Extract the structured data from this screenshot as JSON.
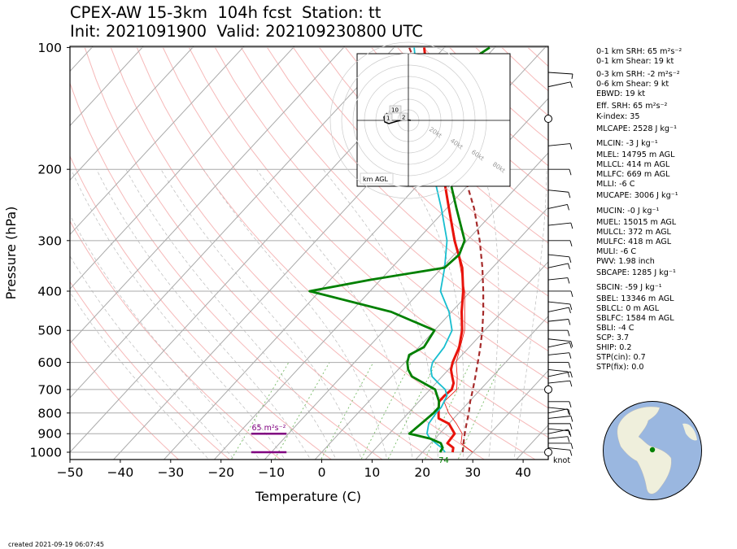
{
  "title": {
    "line1": "CPEX-AW 15-3km  104h fcst  Station: tt",
    "line2": "Init: 2021091900  Valid: 202109230800 UTC"
  },
  "created": "created 2021-09-19 06:07:45",
  "chart_data": {
    "type": "line",
    "subtype": "skew-T log-P",
    "xlabel": "Temperature (C)",
    "ylabel": "Pressure (hPa)",
    "xlim": [
      -50,
      45
    ],
    "ylim": [
      1050,
      100
    ],
    "y_scale": "log",
    "x_ticks": [
      -50,
      -40,
      -30,
      -20,
      -10,
      0,
      10,
      20,
      30,
      40
    ],
    "y_ticks": [
      100,
      200,
      300,
      400,
      500,
      600,
      700,
      800,
      900,
      1000
    ],
    "series": [
      {
        "key": "temperature",
        "color": "#e8130b",
        "points": [
          [
            1000,
            26
          ],
          [
            975,
            25.3
          ],
          [
            950,
            23.3
          ],
          [
            900,
            23
          ],
          [
            850,
            20
          ],
          [
            825,
            17
          ],
          [
            800,
            16
          ],
          [
            775,
            15
          ],
          [
            750,
            14
          ],
          [
            725,
            14
          ],
          [
            700,
            14.3
          ],
          [
            675,
            13.5
          ],
          [
            650,
            12
          ],
          [
            625,
            10.5
          ],
          [
            600,
            9.5
          ],
          [
            550,
            8
          ],
          [
            500,
            5.5
          ],
          [
            450,
            2
          ],
          [
            400,
            -1.5
          ],
          [
            350,
            -6
          ],
          [
            300,
            -12.5
          ],
          [
            250,
            -19.5
          ],
          [
            200,
            -28
          ],
          [
            175,
            -33.5
          ],
          [
            150,
            -39
          ],
          [
            125,
            -46
          ],
          [
            100,
            -54
          ]
        ]
      },
      {
        "key": "virtual_temperature",
        "color": "#e8130b",
        "points": [
          [
            1000,
            30
          ],
          [
            975,
            28
          ],
          [
            950,
            26
          ],
          [
            900,
            24.5
          ],
          [
            850,
            21.5
          ],
          [
            800,
            18
          ],
          [
            750,
            15
          ],
          [
            700,
            15.3
          ],
          [
            650,
            13
          ],
          [
            600,
            10.2
          ],
          [
            500,
            6
          ],
          [
            400,
            -1.2
          ],
          [
            300,
            -12.3
          ],
          [
            200,
            -28
          ],
          [
            100,
            -54
          ]
        ]
      },
      {
        "key": "parcel_temperature",
        "color": "#a52a2a",
        "points": [
          [
            1000,
            28
          ],
          [
            950,
            26.5
          ],
          [
            900,
            25
          ],
          [
            850,
            23.5
          ],
          [
            800,
            22
          ],
          [
            750,
            20.2
          ],
          [
            700,
            18.5
          ],
          [
            650,
            16.6
          ],
          [
            600,
            14.5
          ],
          [
            550,
            12.2
          ],
          [
            500,
            9.5
          ],
          [
            450,
            6.3
          ],
          [
            400,
            2.5
          ],
          [
            350,
            -2
          ],
          [
            300,
            -7.5
          ],
          [
            250,
            -14.5
          ],
          [
            200,
            -24
          ],
          [
            175,
            -30
          ],
          [
            150,
            -37.5
          ],
          [
            125,
            -46.5
          ],
          [
            100,
            -57
          ]
        ]
      },
      {
        "key": "wetbulb",
        "color": "#17becf",
        "points": [
          [
            1000,
            24.5
          ],
          [
            975,
            23
          ],
          [
            950,
            21
          ],
          [
            925,
            19
          ],
          [
            900,
            17.5
          ],
          [
            850,
            16
          ],
          [
            800,
            15.5
          ],
          [
            775,
            15.5
          ],
          [
            750,
            15
          ],
          [
            725,
            14.5
          ],
          [
            700,
            13
          ],
          [
            675,
            10.5
          ],
          [
            650,
            8
          ],
          [
            625,
            6.5
          ],
          [
            600,
            5.5
          ],
          [
            550,
            5
          ],
          [
            500,
            3.5
          ],
          [
            450,
            -0.5
          ],
          [
            400,
            -6
          ],
          [
            350,
            -9.5
          ],
          [
            300,
            -14
          ],
          [
            250,
            -21
          ],
          [
            200,
            -30
          ],
          [
            175,
            -35.5
          ],
          [
            150,
            -41
          ],
          [
            125,
            -48
          ],
          [
            100,
            -56
          ]
        ]
      },
      {
        "key": "dewpoint",
        "color": "#008000",
        "points": [
          [
            1000,
            23.5
          ],
          [
            975,
            23.2
          ],
          [
            950,
            22
          ],
          [
            925,
            19
          ],
          [
            900,
            14
          ],
          [
            850,
            14.5
          ],
          [
            800,
            15
          ],
          [
            775,
            15
          ],
          [
            750,
            14
          ],
          [
            700,
            11
          ],
          [
            650,
            4
          ],
          [
            625,
            2
          ],
          [
            600,
            0.5
          ],
          [
            575,
            -0.5
          ],
          [
            550,
            1
          ],
          [
            500,
            0
          ],
          [
            450,
            -12
          ],
          [
            400,
            -32
          ],
          [
            375,
            -22
          ],
          [
            350,
            -9.5
          ],
          [
            325,
            -9
          ],
          [
            300,
            -10.5
          ],
          [
            250,
            -18
          ],
          [
            200,
            -27
          ],
          [
            175,
            -34
          ],
          [
            150,
            -39
          ],
          [
            125,
            -43
          ],
          [
            110,
            -43
          ],
          [
            100,
            -41
          ]
        ]
      }
    ],
    "srh_bars": [
      {
        "pressure_levels": [
          900
        ],
        "label": "65 m²s⁻²",
        "color": "#800080",
        "x": [
          -14,
          -7
        ]
      },
      {
        "pressure_levels": [
          1000
        ],
        "label": "",
        "color": "#800080",
        "x": [
          -14,
          -7
        ]
      }
    ],
    "surface_label": {
      "text": "74",
      "color": "#008000",
      "temp": 24.5
    },
    "wind_unit_label": "knot",
    "hodograph": {
      "ring_labels": [
        "20kt",
        "40kt",
        "60kt",
        "80kt"
      ],
      "height_labels": [
        "10",
        "1",
        "2"
      ],
      "legend": "km AGL"
    }
  },
  "indices": [
    {
      "text": "0-1 km SRH: 65 m²s⁻²"
    },
    {
      "text": "0-1 km Shear: 19 kt"
    },
    {
      "text": "0-3 km SRH: -2 m²s⁻²"
    },
    {
      "text": "0-6 km Shear: 9 kt"
    },
    {
      "text": "EBWD: 19 kt"
    },
    {
      "text": "Eff. SRH: 65 m²s⁻²"
    },
    {
      "text": "K-index: 35"
    },
    {
      "text": "MLCAPE: 2528 J kg⁻¹"
    },
    {
      "text": "MLCIN: -3 J kg⁻¹"
    },
    {
      "text": "MLEL: 14795 m AGL"
    },
    {
      "text": "MLLCL: 414 m AGL"
    },
    {
      "text": "MLLFC: 669 m AGL"
    },
    {
      "text": "MLLI: -6 C"
    },
    {
      "text": "MUCAPE: 3006 J kg⁻¹"
    },
    {
      "text": "MUCIN: -0 J kg⁻¹"
    },
    {
      "text": "MUEL: 15015 m AGL"
    },
    {
      "text": "MULCL: 372 m AGL"
    },
    {
      "text": "MULFC: 418 m AGL"
    },
    {
      "text": "MULI: -6 C"
    },
    {
      "text": "PWV: 1.98 inch"
    },
    {
      "text": "SBCAPE: 1285 J kg⁻¹"
    },
    {
      "text": "SBCIN: -59 J kg⁻¹"
    },
    {
      "text": "SBEL: 13346 m AGL"
    },
    {
      "text": "SBLCL: 0 m AGL"
    },
    {
      "text": "SBLFC: 1584 m AGL"
    },
    {
      "text": "SBLI: -4 C"
    },
    {
      "text": "SCP: 3.7"
    },
    {
      "text": "SHIP: 0.2"
    },
    {
      "text": "STP(cin): 0.7"
    },
    {
      "text": "STP(fix): 0.0"
    }
  ],
  "colors": {
    "isobar": "#aaaaaa",
    "isotherm": "#aaaaaa",
    "dry_adiabat": "#f4a6a6",
    "moist_adiabat": "#bbbbbb",
    "mixing_ratio": "#77bb66",
    "ocean": "#9ab7e0",
    "land": "#efefdc"
  }
}
